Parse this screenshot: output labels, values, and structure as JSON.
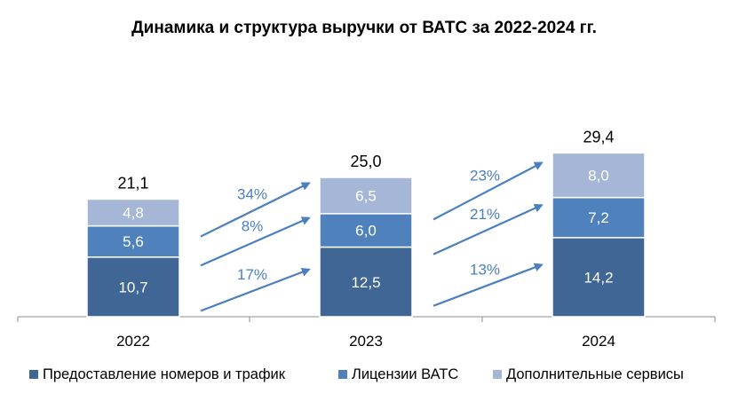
{
  "chart_data": {
    "type": "bar",
    "stacked": true,
    "title": "Динамика и структура выручки от ВАТС за 2022-2024 гг.",
    "categories": [
      "2022",
      "2023",
      "2024"
    ],
    "series": [
      {
        "name": "Предоставление номеров и трафик",
        "values": [
          10.7,
          12.5,
          14.2
        ],
        "labels": [
          "10,7",
          "12,5",
          "14,2"
        ],
        "color": "#3f6695"
      },
      {
        "name": "Лицензии ВАТС",
        "values": [
          5.6,
          6.0,
          7.2
        ],
        "labels": [
          "5,6",
          "6,0",
          "7,2"
        ],
        "color": "#4f81bd"
      },
      {
        "name": "Дополнительные сервисы",
        "values": [
          4.8,
          6.5,
          8.0
        ],
        "labels": [
          "4,8",
          "6,5",
          "8,0"
        ],
        "color": "#a5b6d6"
      }
    ],
    "totals": [
      "21,1",
      "25,0",
      "29,4"
    ],
    "growth": [
      {
        "series": 0,
        "labels": [
          "17%",
          "13%"
        ]
      },
      {
        "series": 1,
        "labels": [
          "8%",
          "21%"
        ]
      },
      {
        "series": 2,
        "labels": [
          "34%",
          "23%"
        ]
      }
    ],
    "growth_color": "#4a7fc0",
    "legend_position": "bottom",
    "grid": false
  }
}
